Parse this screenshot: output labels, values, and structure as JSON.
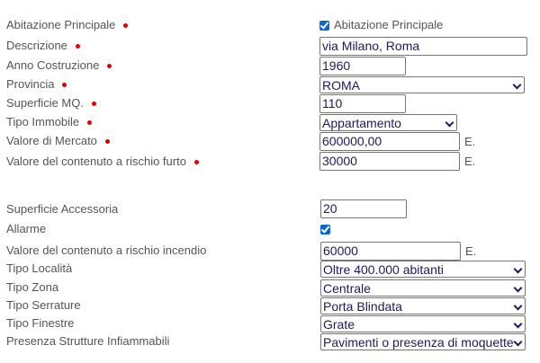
{
  "accent": "#0a66d8",
  "required_color": "#e00000",
  "fields": [
    {
      "label": "Abitazione Principale",
      "required": true,
      "type": "checkbox",
      "checked": true,
      "checkbox_label": "Abitazione Principale"
    },
    {
      "label": "Descrizione",
      "required": true,
      "type": "text",
      "value": "via Milano, Roma"
    },
    {
      "label": "Anno Costruzione",
      "required": true,
      "type": "text",
      "value": "1960"
    },
    {
      "label": "Provincia",
      "required": true,
      "type": "select",
      "value": "ROMA"
    },
    {
      "label": "Superficie MQ.",
      "required": true,
      "type": "text",
      "value": "110"
    },
    {
      "label": "Tipo Immobile",
      "required": true,
      "type": "select",
      "value": "Appartamento"
    },
    {
      "label": "Valore di Mercato",
      "required": true,
      "type": "text",
      "value": "600000,00",
      "unit": "E."
    },
    {
      "label": "Valore del contenuto a rischio furto",
      "required": true,
      "type": "text",
      "value": "30000",
      "unit": "E."
    },
    {
      "label": "Superficie Accessoria",
      "type": "text",
      "value": "20"
    },
    {
      "label": "Allarme",
      "type": "checkbox",
      "checked": true
    },
    {
      "label": "Valore del contenuto a rischio incendio",
      "type": "text",
      "value": "60000",
      "unit": "E."
    },
    {
      "label": "Tipo Località",
      "type": "select",
      "value": "Oltre 400.000 abitanti"
    },
    {
      "label": "Tipo Zona",
      "type": "select",
      "value": "Centrale"
    },
    {
      "label": "Tipo Serrature",
      "type": "select",
      "value": "Porta Blindata"
    },
    {
      "label": "Tipo Finestre",
      "type": "select",
      "value": "Grate"
    },
    {
      "label": "Presenza Strutture Infiammabili",
      "type": "select",
      "value": "Pavimenti o presenza di moquette"
    }
  ]
}
